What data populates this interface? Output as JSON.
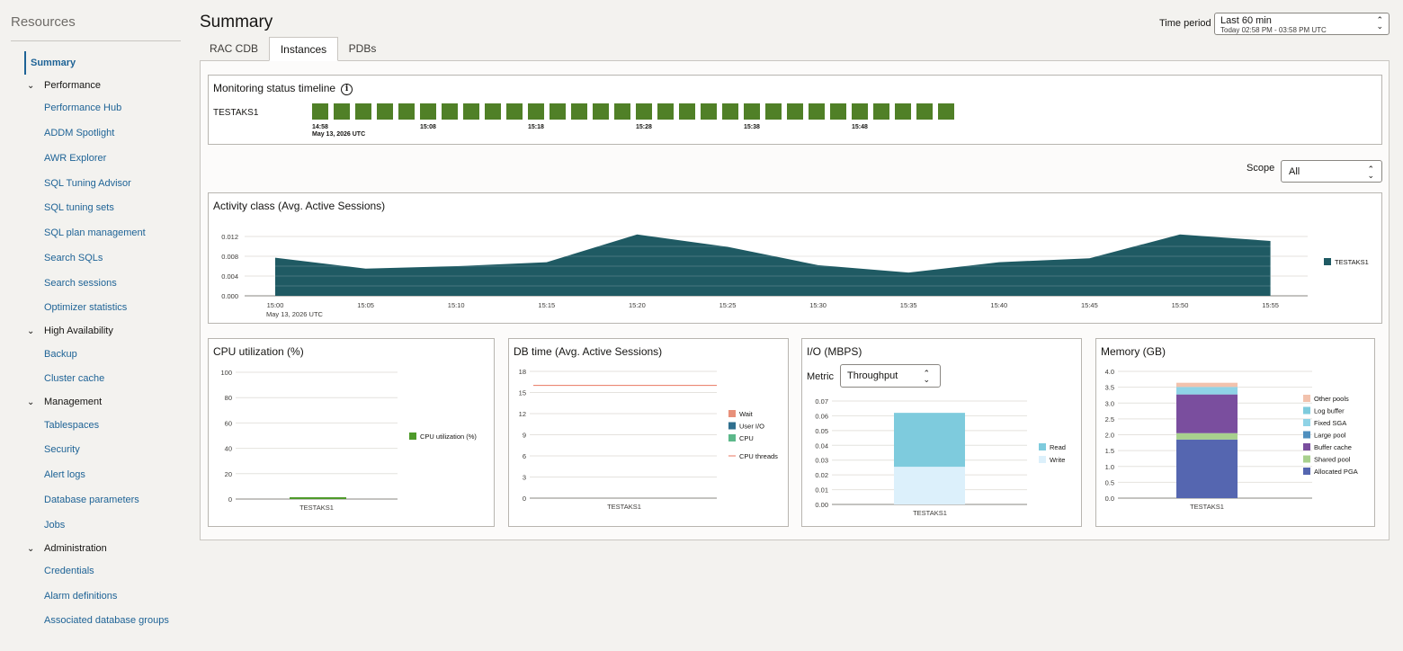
{
  "sidebar": {
    "title": "Resources",
    "summary": "Summary",
    "groups": [
      {
        "label": "Performance",
        "items": [
          "Performance Hub",
          "ADDM Spotlight",
          "AWR Explorer",
          "SQL Tuning Advisor",
          "SQL tuning sets",
          "SQL plan management",
          "Search SQLs",
          "Search sessions",
          "Optimizer statistics"
        ]
      },
      {
        "label": "High Availability",
        "items": [
          "Backup",
          "Cluster cache"
        ]
      },
      {
        "label": "Management",
        "items": [
          "Tablespaces",
          "Security",
          "Alert logs",
          "Database parameters",
          "Jobs"
        ]
      },
      {
        "label": "Administration",
        "items": [
          "Credentials",
          "Alarm definitions",
          "Associated database groups"
        ]
      }
    ]
  },
  "header": {
    "title": "Summary",
    "time_label": "Time period",
    "time_value": "Last 60 min",
    "time_range": "Today 02:58 PM - 03:58 PM UTC"
  },
  "tabs": [
    "RAC CDB",
    "Instances",
    "PDBs"
  ],
  "timeline": {
    "title": "Monitoring status timeline",
    "instance": "TESTAKS1",
    "status_color": "#508027",
    "squares": 30,
    "ticks": [
      "14:58",
      "15:08",
      "15:18",
      "15:28",
      "15:38",
      "15:48"
    ],
    "date": "May 13, 2026 UTC"
  },
  "scope": {
    "label": "Scope",
    "value": "All"
  },
  "chart_data": [
    {
      "type": "area",
      "title": "Activity class (Avg. Active Sessions)",
      "x": [
        "15:00",
        "15:05",
        "15:10",
        "15:15",
        "15:20",
        "15:25",
        "15:30",
        "15:35",
        "15:40",
        "15:45",
        "15:50",
        "15:55"
      ],
      "x_sub": "May 13, 2026 UTC",
      "y_ticks": [
        "0.012",
        "0.008",
        "0.004",
        "0.000"
      ],
      "ylim": [
        0,
        0.0135
      ],
      "series": [
        {
          "name": "TESTAKS1",
          "color": "#1f5a63",
          "values": [
            0.0077,
            0.0055,
            0.006,
            0.0068,
            0.0124,
            0.0099,
            0.0062,
            0.0047,
            0.0068,
            0.0076,
            0.0124,
            0.0111
          ]
        }
      ]
    },
    {
      "type": "bar",
      "title": "CPU utilization (%)",
      "categories": [
        "TESTAKS1"
      ],
      "y_ticks": [
        "100",
        "80",
        "60",
        "40",
        "20",
        "0"
      ],
      "ylim": [
        0,
        100
      ],
      "series": [
        {
          "name": "CPU utilization (%)",
          "color": "#4e9a2a",
          "values": [
            1.2
          ]
        }
      ]
    },
    {
      "type": "bar",
      "title": "DB time (Avg. Active Sessions)",
      "categories": [
        "TESTAKS1"
      ],
      "y_ticks": [
        "18",
        "15",
        "12",
        "9",
        "6",
        "3",
        "0"
      ],
      "ylim": [
        0,
        18
      ],
      "series": [
        {
          "name": "Wait",
          "color": "#e8907a",
          "values": [
            0
          ]
        },
        {
          "name": "User I/O",
          "color": "#2f6f8e",
          "values": [
            0
          ]
        },
        {
          "name": "CPU",
          "color": "#5cb88a",
          "values": [
            0
          ]
        }
      ],
      "reference": {
        "name": "CPU threads",
        "color": "#e8765f",
        "value": 16
      }
    },
    {
      "type": "bar",
      "title": "I/O (MBPS)",
      "categories": [
        "TESTAKS1"
      ],
      "y_ticks": [
        "0.07",
        "0.06",
        "0.05",
        "0.04",
        "0.03",
        "0.02",
        "0.01",
        "0.00"
      ],
      "ylim": [
        0,
        0.07
      ],
      "series": [
        {
          "name": "Read",
          "color": "#7ecbdd",
          "values": [
            0.0365
          ]
        },
        {
          "name": "Write",
          "color": "#dcf0fb",
          "values": [
            0.0255
          ]
        }
      ]
    },
    {
      "type": "bar",
      "title": "Memory (GB)",
      "categories": [
        "TESTAKS1"
      ],
      "y_ticks": [
        "4.0",
        "3.5",
        "3.0",
        "2.5",
        "2.0",
        "1.5",
        "1.0",
        "0.5",
        "0.0"
      ],
      "ylim": [
        0,
        4
      ],
      "series": [
        {
          "name": "Other pools",
          "color": "#f2c2ad",
          "values": [
            0.13
          ]
        },
        {
          "name": "Log buffer",
          "color": "#7ecbdd",
          "values": [
            0.01
          ]
        },
        {
          "name": "Fixed SGA",
          "color": "#8fd3e6",
          "values": [
            0.22
          ]
        },
        {
          "name": "Large pool",
          "color": "#4f8fbe",
          "values": [
            0.01
          ]
        },
        {
          "name": "Buffer cache",
          "color": "#7a4e9e",
          "values": [
            1.22
          ]
        },
        {
          "name": "Shared pool",
          "color": "#a8d08d",
          "values": [
            0.2
          ]
        },
        {
          "name": "Allocated PGA",
          "color": "#5566b0",
          "values": [
            1.85
          ]
        }
      ]
    }
  ],
  "io_metric": {
    "label": "Metric",
    "value": "Throughput"
  }
}
